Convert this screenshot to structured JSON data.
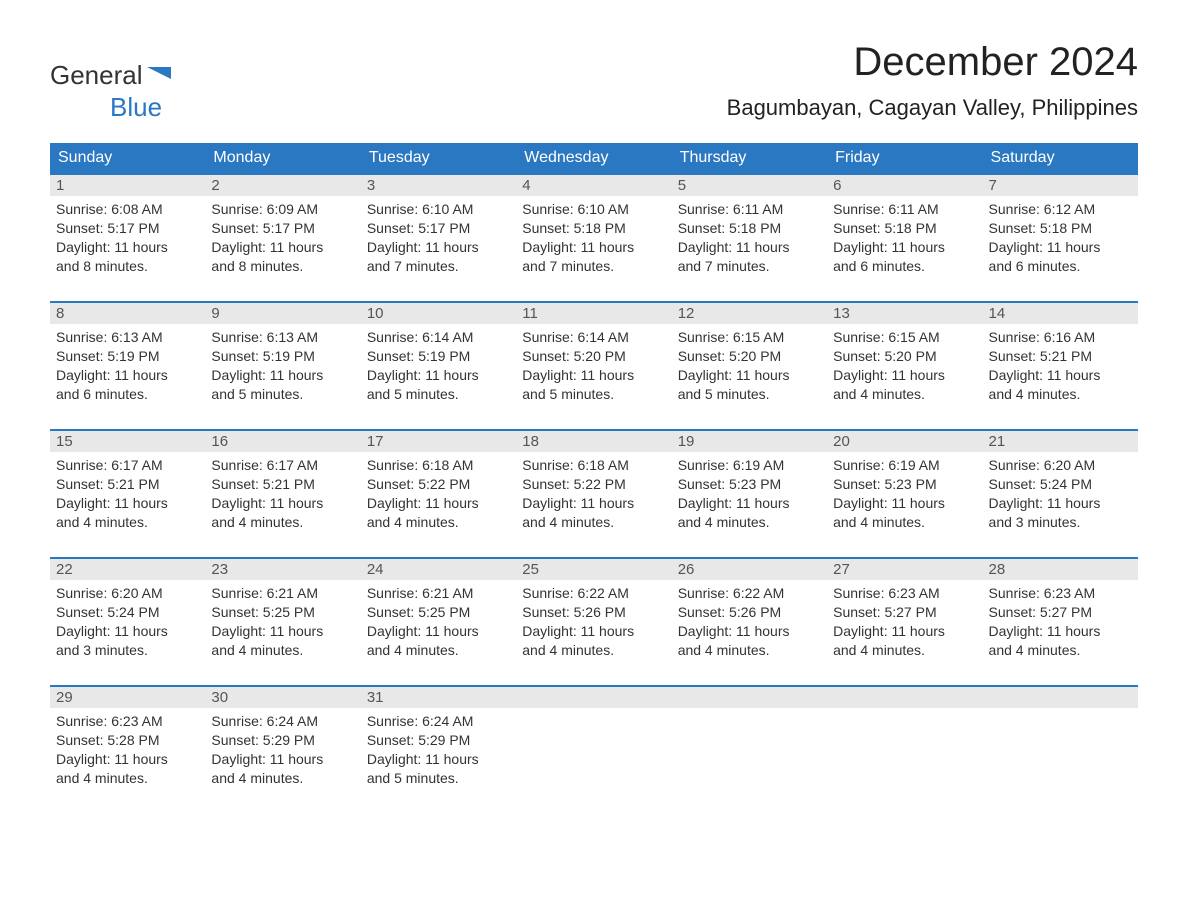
{
  "logo": {
    "text1": "General",
    "text2": "Blue"
  },
  "title": "December 2024",
  "location": "Bagumbayan, Cagayan Valley, Philippines",
  "colors": {
    "header_bg": "#2b78c2",
    "header_text": "#ffffff",
    "daynum_bg": "#e8e8e8",
    "row_border": "#2b78c2",
    "body_text": "#333333",
    "background": "#ffffff"
  },
  "day_headers": [
    "Sunday",
    "Monday",
    "Tuesday",
    "Wednesday",
    "Thursday",
    "Friday",
    "Saturday"
  ],
  "weeks": [
    [
      {
        "n": "1",
        "sunrise": "Sunrise: 6:08 AM",
        "sunset": "Sunset: 5:17 PM",
        "d1": "Daylight: 11 hours",
        "d2": "and 8 minutes."
      },
      {
        "n": "2",
        "sunrise": "Sunrise: 6:09 AM",
        "sunset": "Sunset: 5:17 PM",
        "d1": "Daylight: 11 hours",
        "d2": "and 8 minutes."
      },
      {
        "n": "3",
        "sunrise": "Sunrise: 6:10 AM",
        "sunset": "Sunset: 5:17 PM",
        "d1": "Daylight: 11 hours",
        "d2": "and 7 minutes."
      },
      {
        "n": "4",
        "sunrise": "Sunrise: 6:10 AM",
        "sunset": "Sunset: 5:18 PM",
        "d1": "Daylight: 11 hours",
        "d2": "and 7 minutes."
      },
      {
        "n": "5",
        "sunrise": "Sunrise: 6:11 AM",
        "sunset": "Sunset: 5:18 PM",
        "d1": "Daylight: 11 hours",
        "d2": "and 7 minutes."
      },
      {
        "n": "6",
        "sunrise": "Sunrise: 6:11 AM",
        "sunset": "Sunset: 5:18 PM",
        "d1": "Daylight: 11 hours",
        "d2": "and 6 minutes."
      },
      {
        "n": "7",
        "sunrise": "Sunrise: 6:12 AM",
        "sunset": "Sunset: 5:18 PM",
        "d1": "Daylight: 11 hours",
        "d2": "and 6 minutes."
      }
    ],
    [
      {
        "n": "8",
        "sunrise": "Sunrise: 6:13 AM",
        "sunset": "Sunset: 5:19 PM",
        "d1": "Daylight: 11 hours",
        "d2": "and 6 minutes."
      },
      {
        "n": "9",
        "sunrise": "Sunrise: 6:13 AM",
        "sunset": "Sunset: 5:19 PM",
        "d1": "Daylight: 11 hours",
        "d2": "and 5 minutes."
      },
      {
        "n": "10",
        "sunrise": "Sunrise: 6:14 AM",
        "sunset": "Sunset: 5:19 PM",
        "d1": "Daylight: 11 hours",
        "d2": "and 5 minutes."
      },
      {
        "n": "11",
        "sunrise": "Sunrise: 6:14 AM",
        "sunset": "Sunset: 5:20 PM",
        "d1": "Daylight: 11 hours",
        "d2": "and 5 minutes."
      },
      {
        "n": "12",
        "sunrise": "Sunrise: 6:15 AM",
        "sunset": "Sunset: 5:20 PM",
        "d1": "Daylight: 11 hours",
        "d2": "and 5 minutes."
      },
      {
        "n": "13",
        "sunrise": "Sunrise: 6:15 AM",
        "sunset": "Sunset: 5:20 PM",
        "d1": "Daylight: 11 hours",
        "d2": "and 4 minutes."
      },
      {
        "n": "14",
        "sunrise": "Sunrise: 6:16 AM",
        "sunset": "Sunset: 5:21 PM",
        "d1": "Daylight: 11 hours",
        "d2": "and 4 minutes."
      }
    ],
    [
      {
        "n": "15",
        "sunrise": "Sunrise: 6:17 AM",
        "sunset": "Sunset: 5:21 PM",
        "d1": "Daylight: 11 hours",
        "d2": "and 4 minutes."
      },
      {
        "n": "16",
        "sunrise": "Sunrise: 6:17 AM",
        "sunset": "Sunset: 5:21 PM",
        "d1": "Daylight: 11 hours",
        "d2": "and 4 minutes."
      },
      {
        "n": "17",
        "sunrise": "Sunrise: 6:18 AM",
        "sunset": "Sunset: 5:22 PM",
        "d1": "Daylight: 11 hours",
        "d2": "and 4 minutes."
      },
      {
        "n": "18",
        "sunrise": "Sunrise: 6:18 AM",
        "sunset": "Sunset: 5:22 PM",
        "d1": "Daylight: 11 hours",
        "d2": "and 4 minutes."
      },
      {
        "n": "19",
        "sunrise": "Sunrise: 6:19 AM",
        "sunset": "Sunset: 5:23 PM",
        "d1": "Daylight: 11 hours",
        "d2": "and 4 minutes."
      },
      {
        "n": "20",
        "sunrise": "Sunrise: 6:19 AM",
        "sunset": "Sunset: 5:23 PM",
        "d1": "Daylight: 11 hours",
        "d2": "and 4 minutes."
      },
      {
        "n": "21",
        "sunrise": "Sunrise: 6:20 AM",
        "sunset": "Sunset: 5:24 PM",
        "d1": "Daylight: 11 hours",
        "d2": "and 3 minutes."
      }
    ],
    [
      {
        "n": "22",
        "sunrise": "Sunrise: 6:20 AM",
        "sunset": "Sunset: 5:24 PM",
        "d1": "Daylight: 11 hours",
        "d2": "and 3 minutes."
      },
      {
        "n": "23",
        "sunrise": "Sunrise: 6:21 AM",
        "sunset": "Sunset: 5:25 PM",
        "d1": "Daylight: 11 hours",
        "d2": "and 4 minutes."
      },
      {
        "n": "24",
        "sunrise": "Sunrise: 6:21 AM",
        "sunset": "Sunset: 5:25 PM",
        "d1": "Daylight: 11 hours",
        "d2": "and 4 minutes."
      },
      {
        "n": "25",
        "sunrise": "Sunrise: 6:22 AM",
        "sunset": "Sunset: 5:26 PM",
        "d1": "Daylight: 11 hours",
        "d2": "and 4 minutes."
      },
      {
        "n": "26",
        "sunrise": "Sunrise: 6:22 AM",
        "sunset": "Sunset: 5:26 PM",
        "d1": "Daylight: 11 hours",
        "d2": "and 4 minutes."
      },
      {
        "n": "27",
        "sunrise": "Sunrise: 6:23 AM",
        "sunset": "Sunset: 5:27 PM",
        "d1": "Daylight: 11 hours",
        "d2": "and 4 minutes."
      },
      {
        "n": "28",
        "sunrise": "Sunrise: 6:23 AM",
        "sunset": "Sunset: 5:27 PM",
        "d1": "Daylight: 11 hours",
        "d2": "and 4 minutes."
      }
    ],
    [
      {
        "n": "29",
        "sunrise": "Sunrise: 6:23 AM",
        "sunset": "Sunset: 5:28 PM",
        "d1": "Daylight: 11 hours",
        "d2": "and 4 minutes."
      },
      {
        "n": "30",
        "sunrise": "Sunrise: 6:24 AM",
        "sunset": "Sunset: 5:29 PM",
        "d1": "Daylight: 11 hours",
        "d2": "and 4 minutes."
      },
      {
        "n": "31",
        "sunrise": "Sunrise: 6:24 AM",
        "sunset": "Sunset: 5:29 PM",
        "d1": "Daylight: 11 hours",
        "d2": "and 5 minutes."
      },
      {
        "empty": true
      },
      {
        "empty": true
      },
      {
        "empty": true
      },
      {
        "empty": true
      }
    ]
  ]
}
